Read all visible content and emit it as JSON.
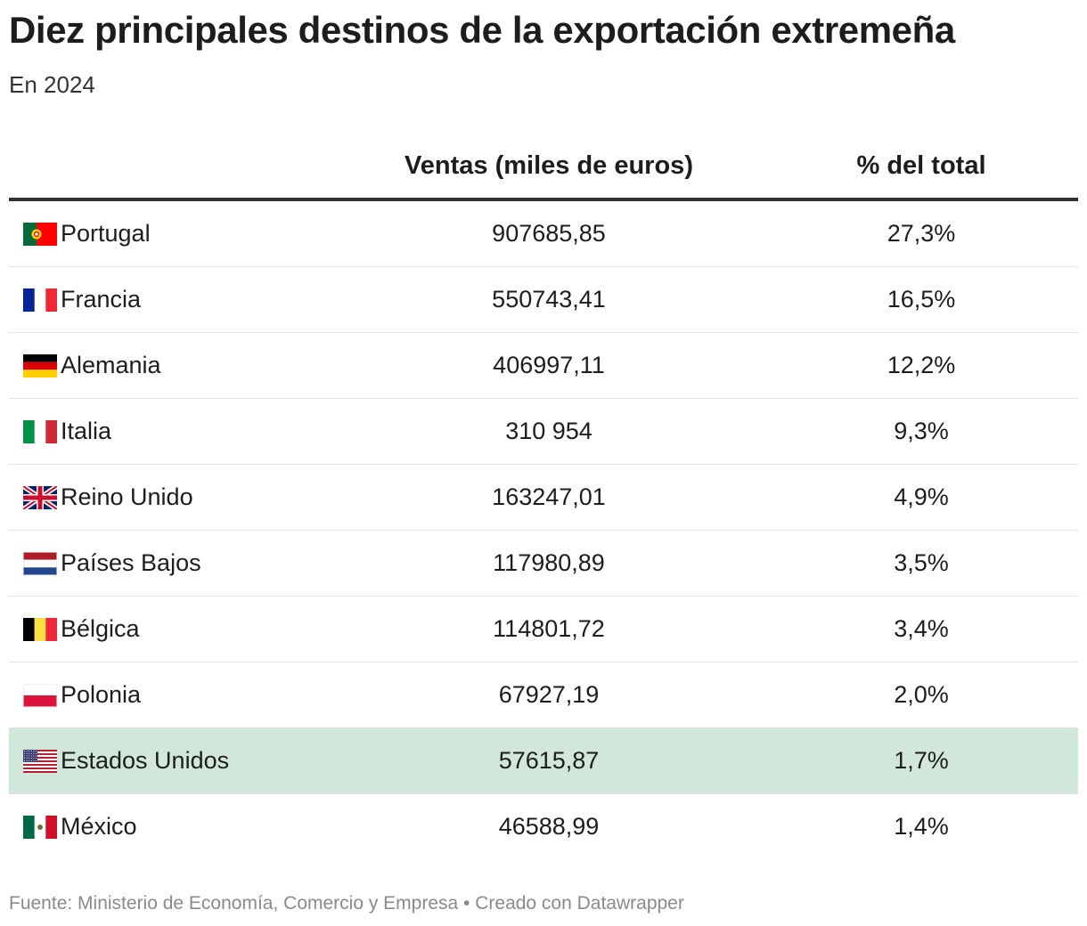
{
  "title": "Diez principales destinos de la exportación extremeña",
  "subtitle": "En 2024",
  "columns": {
    "sales": "Ventas (miles de euros)",
    "pct": "% del total"
  },
  "chart_data": {
    "type": "table",
    "title": "Diez principales destinos de la exportación extremeña",
    "subtitle": "En 2024",
    "columns": [
      "",
      "Ventas (miles de euros)",
      "% del total"
    ],
    "rows": [
      {
        "country": "Portugal",
        "sales": "907685,85",
        "pct": "27,3%",
        "flag": "portugal-flag",
        "highlight": false
      },
      {
        "country": "Francia",
        "sales": "550743,41",
        "pct": "16,5%",
        "flag": "france-flag",
        "highlight": false
      },
      {
        "country": "Alemania",
        "sales": "406997,11",
        "pct": "12,2%",
        "flag": "germany-flag",
        "highlight": false
      },
      {
        "country": "Italia",
        "sales": "310 954",
        "pct": "9,3%",
        "flag": "italy-flag",
        "highlight": false
      },
      {
        "country": "Reino Unido",
        "sales": "163247,01",
        "pct": "4,9%",
        "flag": "uk-flag",
        "highlight": false
      },
      {
        "country": "Países Bajos",
        "sales": "117980,89",
        "pct": "3,5%",
        "flag": "netherlands-flag",
        "highlight": false
      },
      {
        "country": "Bélgica",
        "sales": "114801,72",
        "pct": "3,4%",
        "flag": "belgium-flag",
        "highlight": false
      },
      {
        "country": "Polonia",
        "sales": "67927,19",
        "pct": "2,0%",
        "flag": "poland-flag",
        "highlight": false
      },
      {
        "country": "Estados Unidos",
        "sales": "57615,87",
        "pct": "1,7%",
        "flag": "usa-flag",
        "highlight": true
      },
      {
        "country": "México",
        "sales": "46588,99",
        "pct": "1,4%",
        "flag": "mexico-flag",
        "highlight": false
      }
    ]
  },
  "colors": {
    "highlight_row": "#d0e7da",
    "header_rule": "#333333"
  },
  "footer": "Fuente: Ministerio de Economía, Comercio y Empresa • Creado con Datawrapper"
}
